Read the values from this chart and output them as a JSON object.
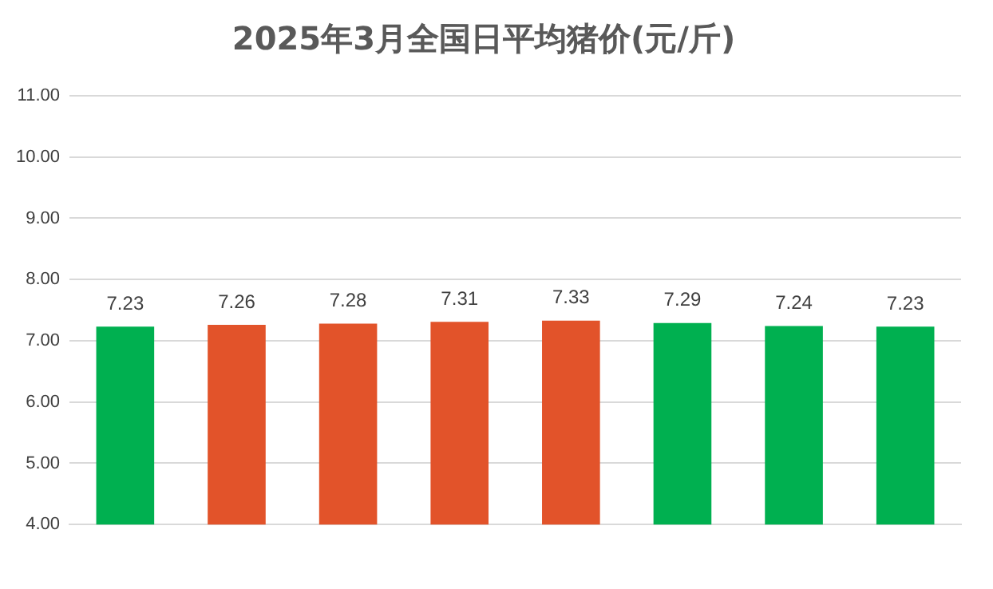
{
  "chart_data": {
    "type": "bar",
    "title": "2025年3月全国日平均猪价(元/斤)",
    "categories": [
      null,
      null,
      null,
      null,
      null,
      null,
      null,
      null
    ],
    "values": [
      7.23,
      7.26,
      7.28,
      7.31,
      7.33,
      7.29,
      7.24,
      7.23
    ],
    "colors": [
      "#00b050",
      "#e2532a",
      "#e2532a",
      "#e2532a",
      "#e2532a",
      "#00b050",
      "#00b050",
      "#00b050"
    ],
    "ylim": [
      4,
      11
    ],
    "yticks": [
      {
        "value": 4,
        "label": "4.00"
      },
      {
        "value": 5,
        "label": "5.00"
      },
      {
        "value": 6,
        "label": "6.00"
      },
      {
        "value": 7,
        "label": "7.00"
      },
      {
        "value": 8,
        "label": "8.00"
      },
      {
        "value": 9,
        "label": "9.00"
      },
      {
        "value": 10,
        "label": "10.00"
      },
      {
        "value": 11,
        "label": "11.00"
      }
    ],
    "grid": "y",
    "data_labels": true,
    "legend": false
  }
}
